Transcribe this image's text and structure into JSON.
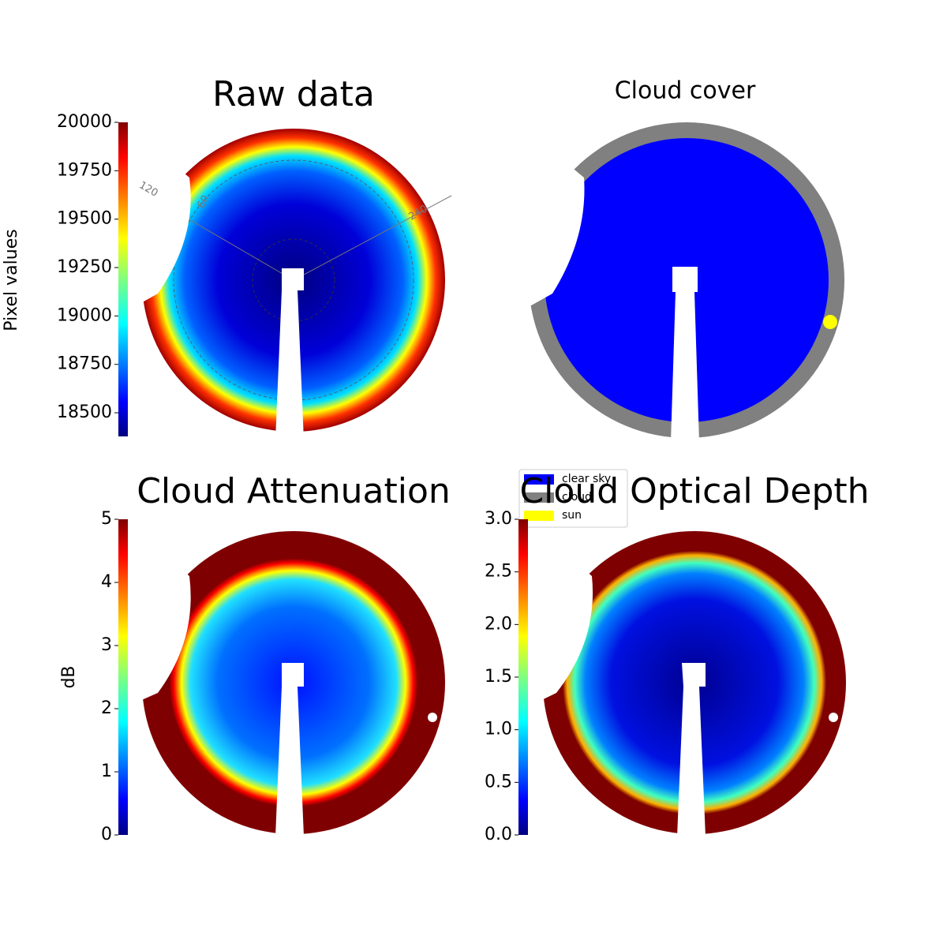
{
  "chart_data": [
    {
      "type": "image",
      "title": "Raw data",
      "colormap": "jet",
      "colorbar": {
        "label": "Pixel values",
        "lim": [
          18378,
          20000
        ],
        "ticks": [
          18500,
          18750,
          19000,
          19250,
          19500,
          19750,
          20000
        ]
      },
      "polar_labels": [
        "120",
        "60",
        "240"
      ]
    },
    {
      "type": "classes",
      "title": "Cloud cover",
      "series": [
        {
          "name": "clear sky",
          "color": "#0000ff"
        },
        {
          "name": "cloud",
          "color": "#808080"
        },
        {
          "name": "sun",
          "color": "#ffff00"
        }
      ]
    },
    {
      "type": "image",
      "title": "Cloud Attenuation",
      "colormap": "jet",
      "colorbar": {
        "label": "dB",
        "lim": [
          0,
          5
        ],
        "ticks": [
          0,
          1,
          2,
          3,
          4,
          5
        ]
      }
    },
    {
      "type": "image",
      "title": "Cloud Optical Depth",
      "colormap": "jet",
      "colorbar": {
        "lim": [
          0,
          3
        ],
        "ticks": [
          {
            "value": 0,
            "label": "0.0"
          },
          {
            "value": 0.5,
            "label": "0.5"
          },
          {
            "value": 1,
            "label": "1.0"
          },
          {
            "value": 1.5,
            "label": "1.5"
          },
          {
            "value": 2,
            "label": "2.0"
          },
          {
            "value": 2.5,
            "label": "2.5"
          },
          {
            "value": 3,
            "label": "3.0"
          }
        ]
      }
    }
  ]
}
